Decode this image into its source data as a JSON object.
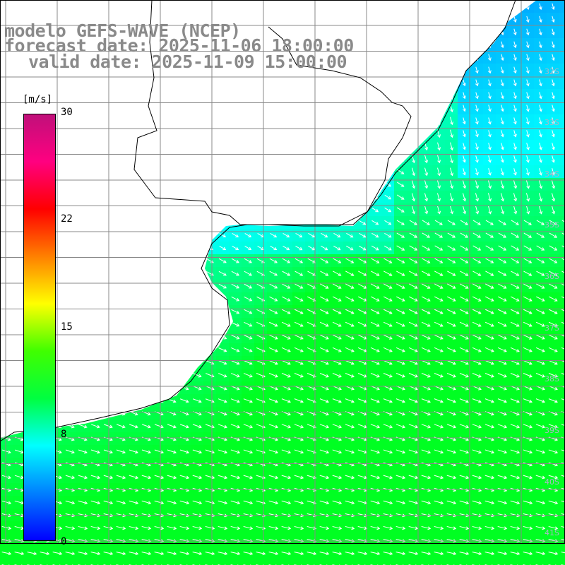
{
  "header": {
    "model": "modelo GEFS-WAVE (NCEP)",
    "forecast": "forecast date: 2025-11-06 18:00:00",
    "valid": "valid date: 2025-11-09 15:00:00"
  },
  "colorbar": {
    "units": "[m/s]",
    "ticks": [
      "30",
      "22",
      "15",
      "8",
      "0"
    ],
    "tick_values": [
      30,
      22,
      15,
      8,
      0
    ],
    "min": 0,
    "max": 30,
    "colors": [
      "#0000ff",
      "#0080ff",
      "#00ffff",
      "#00ff40",
      "#40ff00",
      "#ffff00",
      "#ff8000",
      "#ff0000",
      "#ff0080",
      "#c0107a"
    ]
  },
  "map": {
    "lat_labels": [
      "32S",
      "33S",
      "34S",
      "35S",
      "36S",
      "37S",
      "38S",
      "39S",
      "40S",
      "41S"
    ],
    "land_color": "#ffffff",
    "grid_color": "#888888",
    "coast_color": "#000000",
    "arrow_color": "#ffffff",
    "wind_field": "speed ~3-13 m/s; strongest (green) offshore south-east, weakest (blue) along the coast"
  }
}
